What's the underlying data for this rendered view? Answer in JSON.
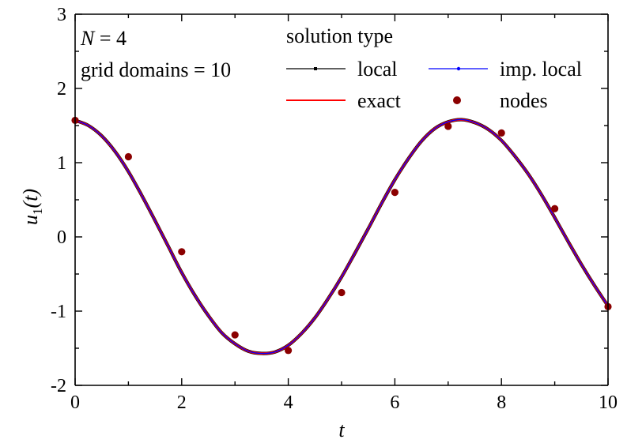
{
  "chart_data": {
    "type": "line",
    "xlabel": "t",
    "ylabel": {
      "main": "u",
      "subscript": "1",
      "argument": "(t)"
    },
    "xlim": [
      0,
      10
    ],
    "ylim": [
      -2,
      3
    ],
    "x_ticks": [
      0,
      2,
      4,
      6,
      8,
      10
    ],
    "x_tick_labels": [
      "0",
      "2",
      "4",
      "6",
      "8",
      "10"
    ],
    "y_ticks": [
      -2,
      -1,
      0,
      1,
      2,
      3
    ],
    "y_tick_labels": [
      "-2",
      "-1",
      "0",
      "1",
      "2",
      "3"
    ],
    "grid": false,
    "annotations": [
      {
        "prefix": "",
        "italic": "N",
        "suffix": " = 4"
      },
      {
        "prefix": "grid domains = 10",
        "italic": "",
        "suffix": ""
      }
    ],
    "legend": {
      "title": "solution type",
      "placement": "top-right",
      "entries": [
        {
          "label": "local",
          "color": "#000000",
          "style": "line-with-small-square"
        },
        {
          "label": "imp. local",
          "color": "#0000ff",
          "style": "line-with-small-dot"
        },
        {
          "label": "exact",
          "color": "#ff0000",
          "style": "line"
        },
        {
          "label": "nodes",
          "color": "#8b0000",
          "style": "marker"
        }
      ]
    },
    "series": [
      {
        "name": "local",
        "color": "#000000",
        "x": [
          0,
          0.25,
          0.5,
          0.75,
          1,
          1.25,
          1.5,
          1.75,
          2,
          2.25,
          2.5,
          2.75,
          3,
          3.25,
          3.5,
          3.75,
          4,
          4.25,
          4.5,
          4.75,
          5,
          5.25,
          5.5,
          5.75,
          6,
          6.25,
          6.5,
          6.75,
          7,
          7.25,
          7.5,
          7.75,
          8,
          8.25,
          8.5,
          8.75,
          9,
          9.25,
          9.5,
          9.75,
          10
        ],
        "y": [
          1.57,
          1.5,
          1.36,
          1.15,
          0.88,
          0.56,
          0.22,
          -0.13,
          -0.48,
          -0.79,
          -1.06,
          -1.29,
          -1.44,
          -1.54,
          -1.57,
          -1.55,
          -1.46,
          -1.3,
          -1.09,
          -0.83,
          -0.54,
          -0.22,
          0.11,
          0.45,
          0.77,
          1.05,
          1.29,
          1.46,
          1.55,
          1.58,
          1.54,
          1.45,
          1.3,
          1.09,
          0.85,
          0.57,
          0.26,
          -0.06,
          -0.37,
          -0.66,
          -0.93
        ]
      },
      {
        "name": "imp. local",
        "color": "#0000ff",
        "x": [
          0,
          0.25,
          0.5,
          0.75,
          1,
          1.25,
          1.5,
          1.75,
          2,
          2.25,
          2.5,
          2.75,
          3,
          3.25,
          3.5,
          3.75,
          4,
          4.25,
          4.5,
          4.75,
          5,
          5.25,
          5.5,
          5.75,
          6,
          6.25,
          6.5,
          6.75,
          7,
          7.25,
          7.5,
          7.75,
          8,
          8.25,
          8.5,
          8.75,
          9,
          9.25,
          9.5,
          9.75,
          10
        ],
        "y": [
          1.57,
          1.5,
          1.36,
          1.15,
          0.88,
          0.56,
          0.22,
          -0.13,
          -0.48,
          -0.79,
          -1.06,
          -1.29,
          -1.44,
          -1.54,
          -1.57,
          -1.55,
          -1.46,
          -1.3,
          -1.09,
          -0.83,
          -0.54,
          -0.22,
          0.11,
          0.45,
          0.77,
          1.05,
          1.29,
          1.46,
          1.55,
          1.58,
          1.54,
          1.45,
          1.3,
          1.09,
          0.85,
          0.57,
          0.26,
          -0.06,
          -0.37,
          -0.66,
          -0.93
        ]
      },
      {
        "name": "exact",
        "color": "#ff0000",
        "x": [
          0,
          0.25,
          0.5,
          0.75,
          1,
          1.25,
          1.5,
          1.75,
          2,
          2.25,
          2.5,
          2.75,
          3,
          3.25,
          3.5,
          3.75,
          4,
          4.25,
          4.5,
          4.75,
          5,
          5.25,
          5.5,
          5.75,
          6,
          6.25,
          6.5,
          6.75,
          7,
          7.25,
          7.5,
          7.75,
          8,
          8.25,
          8.5,
          8.75,
          9,
          9.25,
          9.5,
          9.75,
          10
        ],
        "y": [
          1.57,
          1.5,
          1.36,
          1.15,
          0.88,
          0.56,
          0.22,
          -0.13,
          -0.48,
          -0.79,
          -1.06,
          -1.29,
          -1.44,
          -1.54,
          -1.57,
          -1.55,
          -1.46,
          -1.3,
          -1.09,
          -0.83,
          -0.54,
          -0.22,
          0.11,
          0.45,
          0.77,
          1.05,
          1.29,
          1.46,
          1.55,
          1.58,
          1.54,
          1.45,
          1.3,
          1.09,
          0.85,
          0.57,
          0.26,
          -0.06,
          -0.37,
          -0.66,
          -0.93
        ]
      },
      {
        "name": "nodes",
        "color": "#8b0000",
        "x": [
          0,
          1,
          2,
          3,
          4,
          5,
          6,
          7,
          8,
          9,
          10
        ],
        "y": [
          1.57,
          1.08,
          -0.2,
          -1.32,
          -1.53,
          -0.75,
          0.6,
          1.49,
          1.4,
          0.38,
          -0.94
        ]
      }
    ]
  }
}
